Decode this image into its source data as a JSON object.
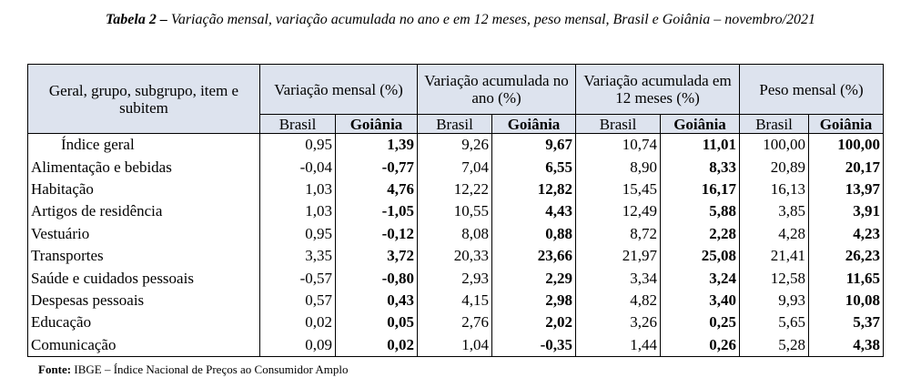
{
  "title": {
    "label": "Tabela 2 –",
    "text": "Variação mensal, variação acumulada no ano e em 12 meses, peso mensal, Brasil e Goiânia – novembro/2021"
  },
  "table": {
    "first_header": "Geral, grupo, subgrupo, item e subitem",
    "group_headers": [
      "Variação mensal (%)",
      "Variação acumulada no ano (%)",
      "Variação acumulada em 12 meses (%)",
      "Peso mensal (%)"
    ],
    "sub_headers": [
      "Brasil",
      "Goiânia",
      "Brasil",
      "Goiânia",
      "Brasil",
      "Goiânia",
      "Brasil",
      "Goiânia"
    ],
    "rows": [
      [
        "Índice geral",
        "0,95",
        "1,39",
        "9,26",
        "9,67",
        "10,74",
        "11,01",
        "100,00",
        "100,00"
      ],
      [
        "Alimentação e bebidas",
        "-0,04",
        "-0,77",
        "7,04",
        "6,55",
        "8,90",
        "8,33",
        "20,89",
        "20,17"
      ],
      [
        "Habitação",
        "1,03",
        "4,76",
        "12,22",
        "12,82",
        "15,45",
        "16,17",
        "16,13",
        "13,97"
      ],
      [
        "Artigos de residência",
        "1,03",
        "-1,05",
        "10,55",
        "4,43",
        "12,49",
        "5,88",
        "3,85",
        "3,91"
      ],
      [
        "Vestuário",
        "0,95",
        "-0,12",
        "8,08",
        "0,88",
        "8,72",
        "2,28",
        "4,28",
        "4,23"
      ],
      [
        "Transportes",
        "3,35",
        "3,72",
        "20,33",
        "23,66",
        "21,97",
        "25,08",
        "21,41",
        "26,23"
      ],
      [
        "Saúde e cuidados pessoais",
        "-0,57",
        "-0,80",
        "2,93",
        "2,29",
        "3,34",
        "3,24",
        "12,58",
        "11,65"
      ],
      [
        "Despesas pessoais",
        "0,57",
        "0,43",
        "4,15",
        "2,98",
        "4,82",
        "3,40",
        "9,93",
        "10,08"
      ],
      [
        "Educação",
        "0,02",
        "0,05",
        "2,76",
        "2,02",
        "3,26",
        "0,25",
        "5,65",
        "5,37"
      ],
      [
        "Comunicação",
        "0,09",
        "0,02",
        "1,04",
        "-0,35",
        "1,44",
        "0,26",
        "5,28",
        "4,38"
      ]
    ]
  },
  "source": {
    "label": "Fonte:",
    "text": "IBGE – Índice Nacional de Preços ao Consumidor Amplo"
  }
}
